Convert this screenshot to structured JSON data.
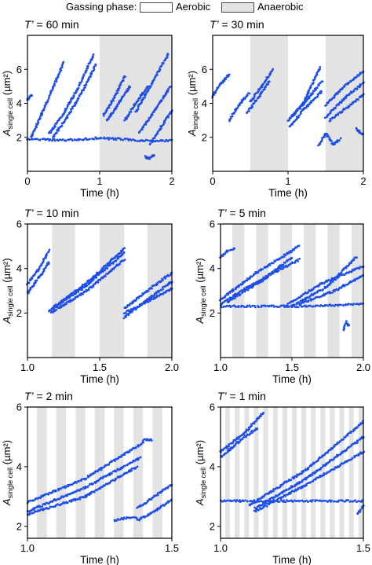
{
  "legend": {
    "title": "Gassing phase:",
    "aerobic": "Aerobic",
    "anaerobic": "Anaerobic",
    "aerobic_fill": "#ffffff",
    "anaerobic_fill": "#e3e3e3"
  },
  "colors": {
    "points": "#1f4fe8",
    "shade": "#e3e3e3"
  },
  "chart_data": [
    {
      "type": "scatter",
      "title": "T’ = 60 min",
      "xlabel": "Time (h)",
      "ylabel": "A single cell (µm²)",
      "xlim": [
        0,
        2
      ],
      "ylim": [
        0,
        8
      ],
      "xticks": [
        0,
        1,
        2
      ],
      "yticks": [
        2,
        4,
        6
      ],
      "anaerobic_intervals": [
        [
          1.0,
          2.0
        ]
      ],
      "series": [
        {
          "x": [
            0.0,
            0.35,
            0.7,
            0.95,
            1.3,
            1.6,
            1.85,
            2.0
          ],
          "y": [
            1.9,
            1.85,
            1.85,
            1.95,
            1.9,
            1.8,
            1.8,
            1.8
          ]
        },
        {
          "x": [
            0.0,
            0.03,
            0.06
          ],
          "y": [
            4.2,
            4.35,
            4.5
          ]
        },
        {
          "x": [
            0.05,
            0.2,
            0.35,
            0.5
          ],
          "y": [
            2.0,
            3.4,
            4.9,
            6.4
          ]
        },
        {
          "x": [
            0.3,
            0.5,
            0.7,
            0.92
          ],
          "y": [
            2.2,
            3.4,
            4.9,
            6.9
          ]
        },
        {
          "x": [
            0.35,
            0.55,
            0.75,
            0.95
          ],
          "y": [
            2.0,
            3.2,
            4.6,
            6.3
          ]
        },
        {
          "x": [
            1.05,
            1.2,
            1.35
          ],
          "y": [
            3.3,
            4.3,
            5.6
          ]
        },
        {
          "x": [
            1.1,
            1.25,
            1.42
          ],
          "y": [
            3.0,
            3.9,
            5.0
          ]
        },
        {
          "x": [
            1.35,
            1.5,
            1.67
          ],
          "y": [
            3.0,
            4.0,
            5.0
          ]
        },
        {
          "x": [
            1.5,
            1.7,
            1.95
          ],
          "y": [
            3.5,
            5.0,
            6.9
          ]
        },
        {
          "x": [
            1.55,
            1.75,
            1.98
          ],
          "y": [
            2.3,
            3.5,
            5.0
          ]
        },
        {
          "x": [
            1.7,
            1.85,
            2.0
          ],
          "y": [
            1.6,
            2.6,
            3.6
          ]
        },
        {
          "x": [
            1.63,
            1.68,
            1.76
          ],
          "y": [
            0.9,
            0.75,
            1.0
          ]
        }
      ]
    },
    {
      "type": "scatter",
      "title": "T’ = 30 min",
      "xlabel": "Time (h)",
      "ylabel": "A single cell (µm²)",
      "xlim": [
        0,
        2
      ],
      "ylim": [
        0,
        8
      ],
      "xticks": [
        0,
        1,
        2
      ],
      "yticks": [
        2,
        4,
        6
      ],
      "anaerobic_intervals": [
        [
          0.5,
          1.0
        ],
        [
          1.5,
          2.0
        ]
      ],
      "series": [
        {
          "x": [
            0.0,
            0.1,
            0.22
          ],
          "y": [
            4.4,
            5.1,
            5.7
          ]
        },
        {
          "x": [
            0.22,
            0.35,
            0.48
          ],
          "y": [
            3.0,
            3.9,
            4.6
          ]
        },
        {
          "x": [
            0.5,
            0.65,
            0.8
          ],
          "y": [
            4.1,
            5.0,
            6.0
          ]
        },
        {
          "x": [
            0.45,
            0.6,
            0.75
          ],
          "y": [
            3.4,
            4.3,
            5.3
          ]
        },
        {
          "x": [
            1.0,
            1.2,
            1.42
          ],
          "y": [
            3.0,
            4.0,
            6.1
          ]
        },
        {
          "x": [
            1.05,
            1.25,
            1.45
          ],
          "y": [
            3.2,
            4.2,
            5.3
          ]
        },
        {
          "x": [
            1.02,
            1.22,
            1.45
          ],
          "y": [
            2.6,
            3.7,
            4.7
          ]
        },
        {
          "x": [
            1.5,
            1.75,
            2.0
          ],
          "y": [
            3.9,
            5.0,
            5.9
          ]
        },
        {
          "x": [
            1.5,
            1.75,
            2.0
          ],
          "y": [
            3.2,
            4.3,
            5.2
          ]
        },
        {
          "x": [
            1.55,
            1.8,
            2.0
          ],
          "y": [
            3.0,
            3.8,
            4.5
          ]
        },
        {
          "x": [
            1.9,
            1.95,
            2.0
          ],
          "y": [
            2.5,
            2.3,
            2.2
          ]
        },
        {
          "x": [
            1.4,
            1.5,
            1.6,
            1.7
          ],
          "y": [
            1.5,
            2.2,
            1.6,
            1.9
          ]
        }
      ]
    },
    {
      "type": "scatter",
      "title": "T’ = 10 min",
      "xlabel": "Time (h)",
      "ylabel": "A single cell (µm²)",
      "xlim": [
        1.0,
        2.0
      ],
      "ylim": [
        0,
        6
      ],
      "xticks": [
        1.0,
        1.5,
        2.0
      ],
      "yticks": [
        2,
        4,
        6
      ],
      "anaerobic_intervals": [
        [
          1.17,
          1.33
        ],
        [
          1.5,
          1.67
        ],
        [
          1.83,
          2.0
        ]
      ],
      "series": [
        {
          "x": [
            1.0,
            1.08,
            1.15
          ],
          "y": [
            3.3,
            4.0,
            4.8
          ]
        },
        {
          "x": [
            1.0,
            1.08,
            1.15
          ],
          "y": [
            2.9,
            3.6,
            4.3
          ]
        },
        {
          "x": [
            1.15,
            1.4,
            1.67
          ],
          "y": [
            2.1,
            3.2,
            4.7
          ]
        },
        {
          "x": [
            1.16,
            1.41,
            1.67
          ],
          "y": [
            2.0,
            3.0,
            4.4
          ]
        },
        {
          "x": [
            1.17,
            1.42,
            1.67
          ],
          "y": [
            2.2,
            3.4,
            4.9
          ]
        },
        {
          "x": [
            1.67,
            1.83,
            2.0
          ],
          "y": [
            2.2,
            3.0,
            3.8
          ]
        },
        {
          "x": [
            1.67,
            1.83,
            2.0
          ],
          "y": [
            1.8,
            2.6,
            3.4
          ]
        },
        {
          "x": [
            1.67,
            1.83,
            2.0
          ],
          "y": [
            2.0,
            2.5,
            3.1
          ]
        }
      ]
    },
    {
      "type": "scatter",
      "title": "T’ = 5 min",
      "xlabel": "Time (h)",
      "ylabel": "A single cell (µm²)",
      "xlim": [
        1.0,
        2.0
      ],
      "ylim": [
        0,
        6
      ],
      "xticks": [
        1.0,
        1.5,
        2.0
      ],
      "yticks": [
        2,
        4,
        6
      ],
      "anaerobic_intervals": [
        [
          1.083,
          1.167
        ],
        [
          1.25,
          1.333
        ],
        [
          1.417,
          1.5
        ],
        [
          1.583,
          1.667
        ],
        [
          1.75,
          1.833
        ],
        [
          1.917,
          2.0
        ]
      ],
      "series": [
        {
          "x": [
            1.0,
            1.3,
            1.6,
            2.0
          ],
          "y": [
            2.3,
            2.3,
            2.3,
            2.4
          ]
        },
        {
          "x": [
            1.0,
            1.05,
            1.1
          ],
          "y": [
            4.5,
            4.8,
            4.9
          ]
        },
        {
          "x": [
            1.0,
            1.25,
            1.55
          ],
          "y": [
            2.6,
            3.8,
            5.0
          ]
        },
        {
          "x": [
            1.0,
            1.25,
            1.55
          ],
          "y": [
            2.4,
            3.4,
            4.4
          ]
        },
        {
          "x": [
            1.05,
            1.3,
            1.5
          ],
          "y": [
            2.5,
            3.5,
            4.5
          ]
        },
        {
          "x": [
            1.45,
            1.7,
            2.0
          ],
          "y": [
            2.3,
            3.3,
            4.1
          ]
        },
        {
          "x": [
            1.5,
            1.75,
            1.95
          ],
          "y": [
            2.3,
            3.2,
            4.5
          ]
        },
        {
          "x": [
            1.55,
            1.8,
            2.0
          ],
          "y": [
            2.4,
            3.0,
            3.7
          ]
        },
        {
          "x": [
            1.86,
            1.88,
            1.9
          ],
          "y": [
            1.2,
            1.6,
            1.4
          ]
        }
      ]
    },
    {
      "type": "scatter",
      "title": "T’ = 2 min",
      "xlabel": "Time (h)",
      "ylabel": "A single cell (µm²)",
      "xlim": [
        1.0,
        1.5
      ],
      "ylim": [
        1.6,
        6
      ],
      "xticks": [
        1.0,
        1.5
      ],
      "yticks": [
        2,
        4,
        6
      ],
      "anaerobic_intervals": [
        [
          1.033,
          1.067
        ],
        [
          1.1,
          1.133
        ],
        [
          1.167,
          1.2
        ],
        [
          1.233,
          1.267
        ],
        [
          1.3,
          1.333
        ],
        [
          1.367,
          1.4
        ],
        [
          1.433,
          1.467
        ]
      ],
      "series": [
        {
          "x": [
            1.0,
            1.2,
            1.4
          ],
          "y": [
            2.8,
            3.6,
            4.8
          ]
        },
        {
          "x": [
            1.0,
            1.2,
            1.39
          ],
          "y": [
            2.5,
            3.3,
            4.3
          ]
        },
        {
          "x": [
            1.0,
            1.2,
            1.38
          ],
          "y": [
            2.4,
            3.0,
            4.0
          ]
        },
        {
          "x": [
            1.4,
            1.42,
            1.43
          ],
          "y": [
            4.9,
            4.9,
            4.9
          ]
        },
        {
          "x": [
            1.3,
            1.35,
            1.38
          ],
          "y": [
            2.2,
            2.3,
            2.3
          ]
        },
        {
          "x": [
            1.38,
            1.44,
            1.5
          ],
          "y": [
            2.6,
            3.0,
            3.4
          ]
        },
        {
          "x": [
            1.38,
            1.44,
            1.5
          ],
          "y": [
            2.2,
            2.5,
            2.9
          ]
        }
      ]
    },
    {
      "type": "scatter",
      "title": "T’ = 1 min",
      "xlabel": "Time (h)",
      "ylabel": "A single cell (µm²)",
      "xlim": [
        1.0,
        1.5
      ],
      "ylim": [
        1.6,
        6
      ],
      "xticks": [
        1.0,
        1.5
      ],
      "yticks": [
        2,
        4,
        6
      ],
      "anaerobic_stripe_period_h": 0.0333,
      "series": [
        {
          "x": [
            1.0,
            1.25,
            1.5
          ],
          "y": [
            2.85,
            2.85,
            2.85
          ]
        },
        {
          "x": [
            1.0,
            1.08,
            1.15
          ],
          "y": [
            4.5,
            5.1,
            5.8
          ]
        },
        {
          "x": [
            1.0,
            1.07,
            1.13
          ],
          "y": [
            4.3,
            4.9,
            5.3
          ]
        },
        {
          "x": [
            1.1,
            1.3,
            1.5
          ],
          "y": [
            2.7,
            3.9,
            5.5
          ]
        },
        {
          "x": [
            1.12,
            1.3,
            1.5
          ],
          "y": [
            2.6,
            3.6,
            5.0
          ]
        },
        {
          "x": [
            1.12,
            1.3,
            1.5
          ],
          "y": [
            2.5,
            3.4,
            4.5
          ]
        },
        {
          "x": [
            1.48,
            1.5
          ],
          "y": [
            2.4,
            2.7
          ]
        }
      ]
    }
  ]
}
